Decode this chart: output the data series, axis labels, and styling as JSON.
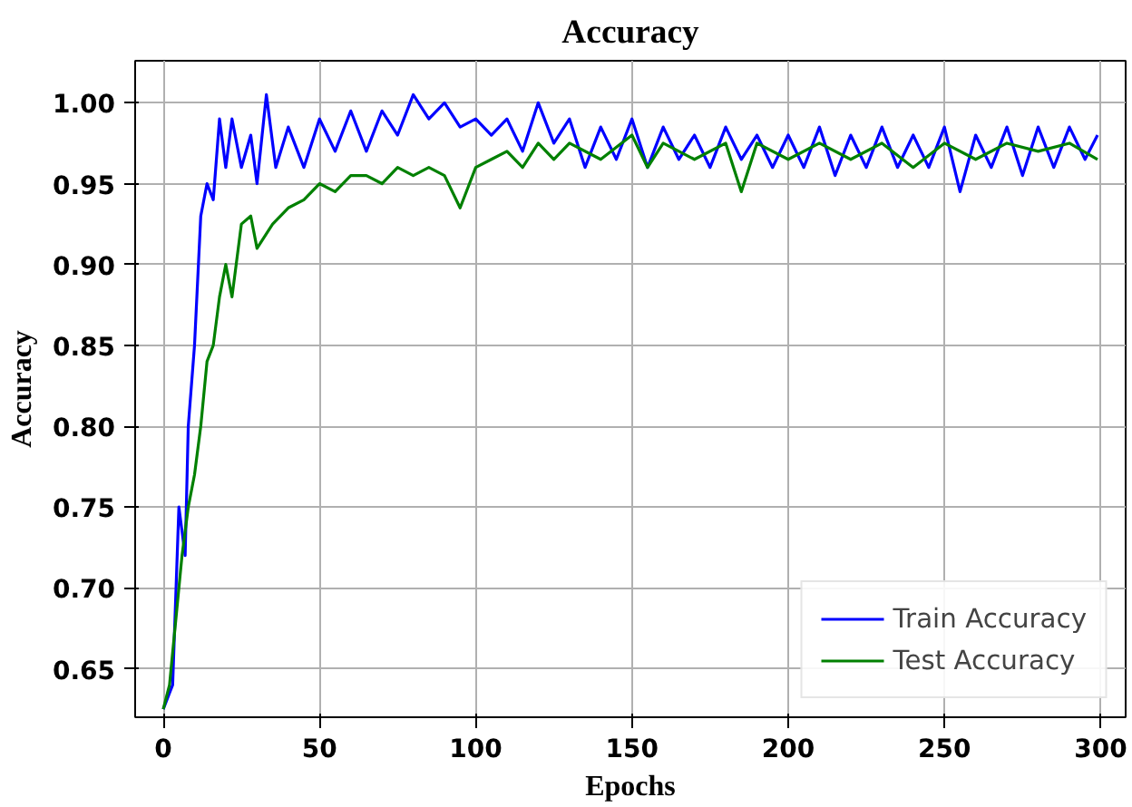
{
  "chart_data": {
    "type": "line",
    "title": "Accuracy",
    "xlabel": "Epochs",
    "ylabel": "Accuracy",
    "xlim": [
      -9,
      308
    ],
    "ylim": [
      0.62,
      1.026
    ],
    "xticks": [
      0,
      50,
      100,
      150,
      200,
      250,
      300
    ],
    "yticks": [
      {
        "value": 0.65,
        "label": "0.65"
      },
      {
        "value": 0.7,
        "label": "0.70"
      },
      {
        "value": 0.75,
        "label": "0.75"
      },
      {
        "value": 0.8,
        "label": "0.80"
      },
      {
        "value": 0.85,
        "label": "0.85"
      },
      {
        "value": 0.9,
        "label": "0.90"
      },
      {
        "value": 0.95,
        "label": "0.95"
      },
      {
        "value": 1.0,
        "label": "1.00"
      }
    ],
    "grid": true,
    "legend": "bottom right",
    "line_style": "solid",
    "series": [
      {
        "name": "Train Accuracy",
        "color": "#0000ff",
        "x": [
          0,
          3,
          5,
          7,
          8,
          10,
          12,
          14,
          16,
          18,
          20,
          22,
          25,
          28,
          30,
          33,
          36,
          40,
          45,
          50,
          55,
          60,
          65,
          70,
          75,
          80,
          85,
          90,
          95,
          100,
          105,
          110,
          115,
          120,
          125,
          130,
          135,
          140,
          145,
          150,
          155,
          160,
          165,
          170,
          175,
          180,
          185,
          190,
          195,
          200,
          205,
          210,
          215,
          220,
          225,
          230,
          235,
          240,
          245,
          250,
          255,
          260,
          265,
          270,
          275,
          280,
          285,
          290,
          295,
          299
        ],
        "values": [
          0.625,
          0.64,
          0.75,
          0.72,
          0.8,
          0.85,
          0.93,
          0.95,
          0.94,
          0.99,
          0.96,
          0.99,
          0.96,
          0.98,
          0.95,
          1.005,
          0.96,
          0.985,
          0.96,
          0.99,
          0.97,
          0.995,
          0.97,
          0.995,
          0.98,
          1.005,
          0.99,
          1.0,
          0.985,
          0.99,
          0.98,
          0.99,
          0.97,
          1.0,
          0.975,
          0.99,
          0.96,
          0.985,
          0.965,
          0.99,
          0.96,
          0.985,
          0.965,
          0.98,
          0.96,
          0.985,
          0.965,
          0.98,
          0.96,
          0.98,
          0.96,
          0.985,
          0.955,
          0.98,
          0.96,
          0.985,
          0.96,
          0.98,
          0.96,
          0.985,
          0.945,
          0.98,
          0.96,
          0.985,
          0.955,
          0.985,
          0.96,
          0.985,
          0.965,
          0.98
        ]
      },
      {
        "name": "Test Accuracy",
        "color": "#008000",
        "x": [
          0,
          2,
          4,
          6,
          8,
          10,
          12,
          14,
          16,
          18,
          20,
          22,
          25,
          28,
          30,
          35,
          40,
          45,
          50,
          55,
          60,
          65,
          70,
          75,
          80,
          85,
          90,
          95,
          100,
          105,
          110,
          115,
          120,
          125,
          130,
          140,
          150,
          155,
          160,
          170,
          180,
          185,
          190,
          200,
          210,
          220,
          230,
          240,
          250,
          260,
          270,
          280,
          290,
          299
        ],
        "values": [
          0.625,
          0.64,
          0.68,
          0.72,
          0.75,
          0.77,
          0.8,
          0.84,
          0.85,
          0.88,
          0.9,
          0.88,
          0.925,
          0.93,
          0.91,
          0.925,
          0.935,
          0.94,
          0.95,
          0.945,
          0.955,
          0.955,
          0.95,
          0.96,
          0.955,
          0.96,
          0.955,
          0.935,
          0.96,
          0.965,
          0.97,
          0.96,
          0.975,
          0.965,
          0.975,
          0.965,
          0.98,
          0.96,
          0.975,
          0.965,
          0.975,
          0.945,
          0.975,
          0.965,
          0.975,
          0.965,
          0.975,
          0.96,
          0.975,
          0.965,
          0.975,
          0.97,
          0.975,
          0.965
        ]
      }
    ]
  }
}
